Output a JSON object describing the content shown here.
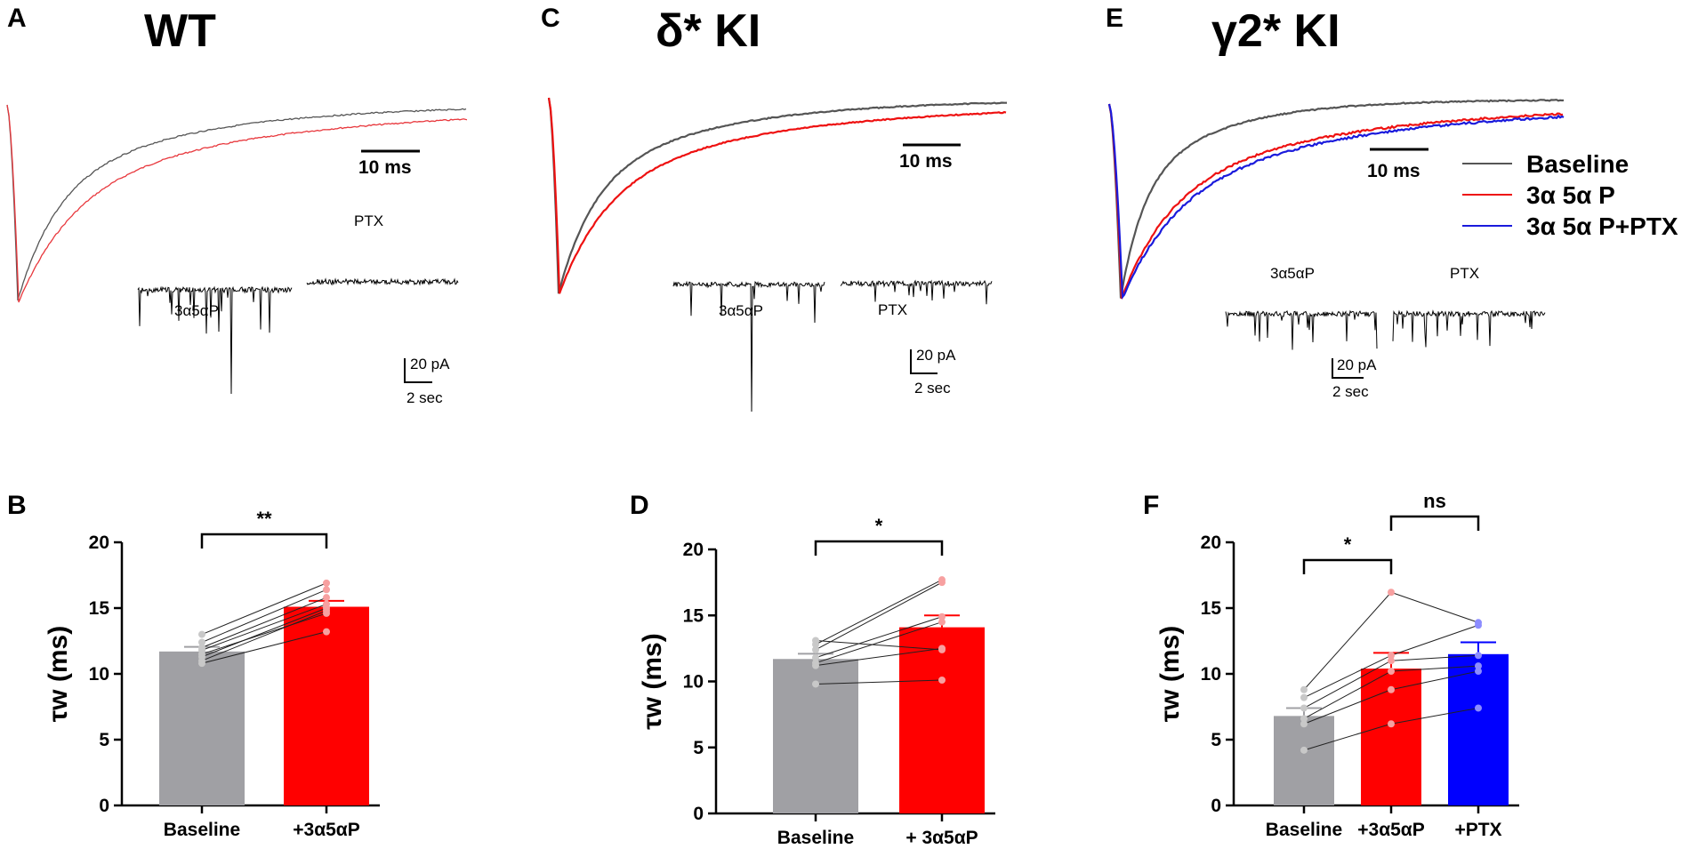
{
  "panels_top": [
    {
      "label": "A",
      "title": "WT",
      "trace_scale": "10 ms",
      "inset_labels": [
        "3α5αP",
        "PTX"
      ],
      "inset_scale_y": "20 pA",
      "inset_scale_x": "2 sec",
      "series_colors": [
        "#555555",
        "#e8383d"
      ]
    },
    {
      "label": "C",
      "title": "δ* KI",
      "trace_scale": "10 ms",
      "inset_labels": [
        "3α5αP",
        "PTX"
      ],
      "inset_scale_y": "20 pA",
      "inset_scale_x": "2 sec",
      "series_colors": [
        "#555555",
        "#ee1111"
      ]
    },
    {
      "label": "E",
      "title": "γ2* KI",
      "trace_scale": "10 ms",
      "inset_labels": [
        "3α5αP",
        "PTX"
      ],
      "inset_scale_y": "20 pA",
      "inset_scale_x": "2 sec",
      "series_colors": [
        "#555555",
        "#ee1111",
        "#1a1adc"
      ],
      "legend": [
        {
          "label": "Baseline",
          "color": "#555555"
        },
        {
          "label": "3α 5α P",
          "color": "#ee1111"
        },
        {
          "label": "3α 5α P+PTX",
          "color": "#1a1adc"
        }
      ]
    }
  ],
  "chart_data": [
    {
      "panel": "B",
      "type": "bar",
      "categories": [
        "Baseline",
        "+3α5αP"
      ],
      "values": [
        11.7,
        15.1
      ],
      "sem": [
        0.35,
        0.45
      ],
      "colors": [
        "#a0a0a4",
        "#ff0000"
      ],
      "points": [
        [
          10.8,
          11.0,
          11.3,
          11.5,
          11.8,
          12.0,
          12.4,
          13.0
        ],
        [
          13.2,
          14.8,
          15.0,
          14.6,
          15.3,
          15.8,
          16.4,
          16.9
        ]
      ],
      "ylabel": "τw (ms)",
      "ylim": [
        0,
        20
      ],
      "yticks": [
        0,
        5,
        10,
        15,
        20
      ],
      "significance": [
        {
          "from": 0,
          "to": 1,
          "label": "**"
        }
      ]
    },
    {
      "panel": "D",
      "type": "bar",
      "categories": [
        "Baseline",
        "+ 3α5αP"
      ],
      "values": [
        11.7,
        14.1
      ],
      "sem": [
        0.4,
        0.9
      ],
      "colors": [
        "#a0a0a4",
        "#ff0000"
      ],
      "points": [
        [
          9.8,
          11.2,
          11.4,
          11.8,
          12.4,
          12.8,
          13.1
        ],
        [
          10.1,
          12.5,
          14.5,
          14.9,
          17.5,
          17.7,
          12.4
        ]
      ],
      "ylabel": "τw (ms)",
      "ylim": [
        0,
        20
      ],
      "yticks": [
        0,
        5,
        10,
        15,
        20
      ],
      "significance": [
        {
          "from": 0,
          "to": 1,
          "label": "*"
        }
      ]
    },
    {
      "panel": "F",
      "type": "bar",
      "categories": [
        "Baseline",
        "+3α5αP",
        "+PTX"
      ],
      "values": [
        6.8,
        10.4,
        11.5
      ],
      "sem": [
        0.6,
        1.2,
        0.9
      ],
      "colors": [
        "#a0a0a4",
        "#ff0000",
        "#0000ff"
      ],
      "points": [
        [
          4.2,
          6.2,
          6.6,
          7.4,
          8.2,
          8.8
        ],
        [
          6.2,
          8.8,
          10.2,
          11.0,
          11.4,
          16.2
        ],
        [
          7.4,
          10.2,
          10.6,
          11.4,
          13.7,
          13.9
        ]
      ],
      "ylabel": "τw (ms)",
      "ylim": [
        0,
        20
      ],
      "yticks": [
        0,
        5,
        10,
        15,
        20
      ],
      "significance": [
        {
          "from": 0,
          "to": 1,
          "label": "*"
        },
        {
          "from": 1,
          "to": 2,
          "label": "ns"
        }
      ]
    }
  ]
}
